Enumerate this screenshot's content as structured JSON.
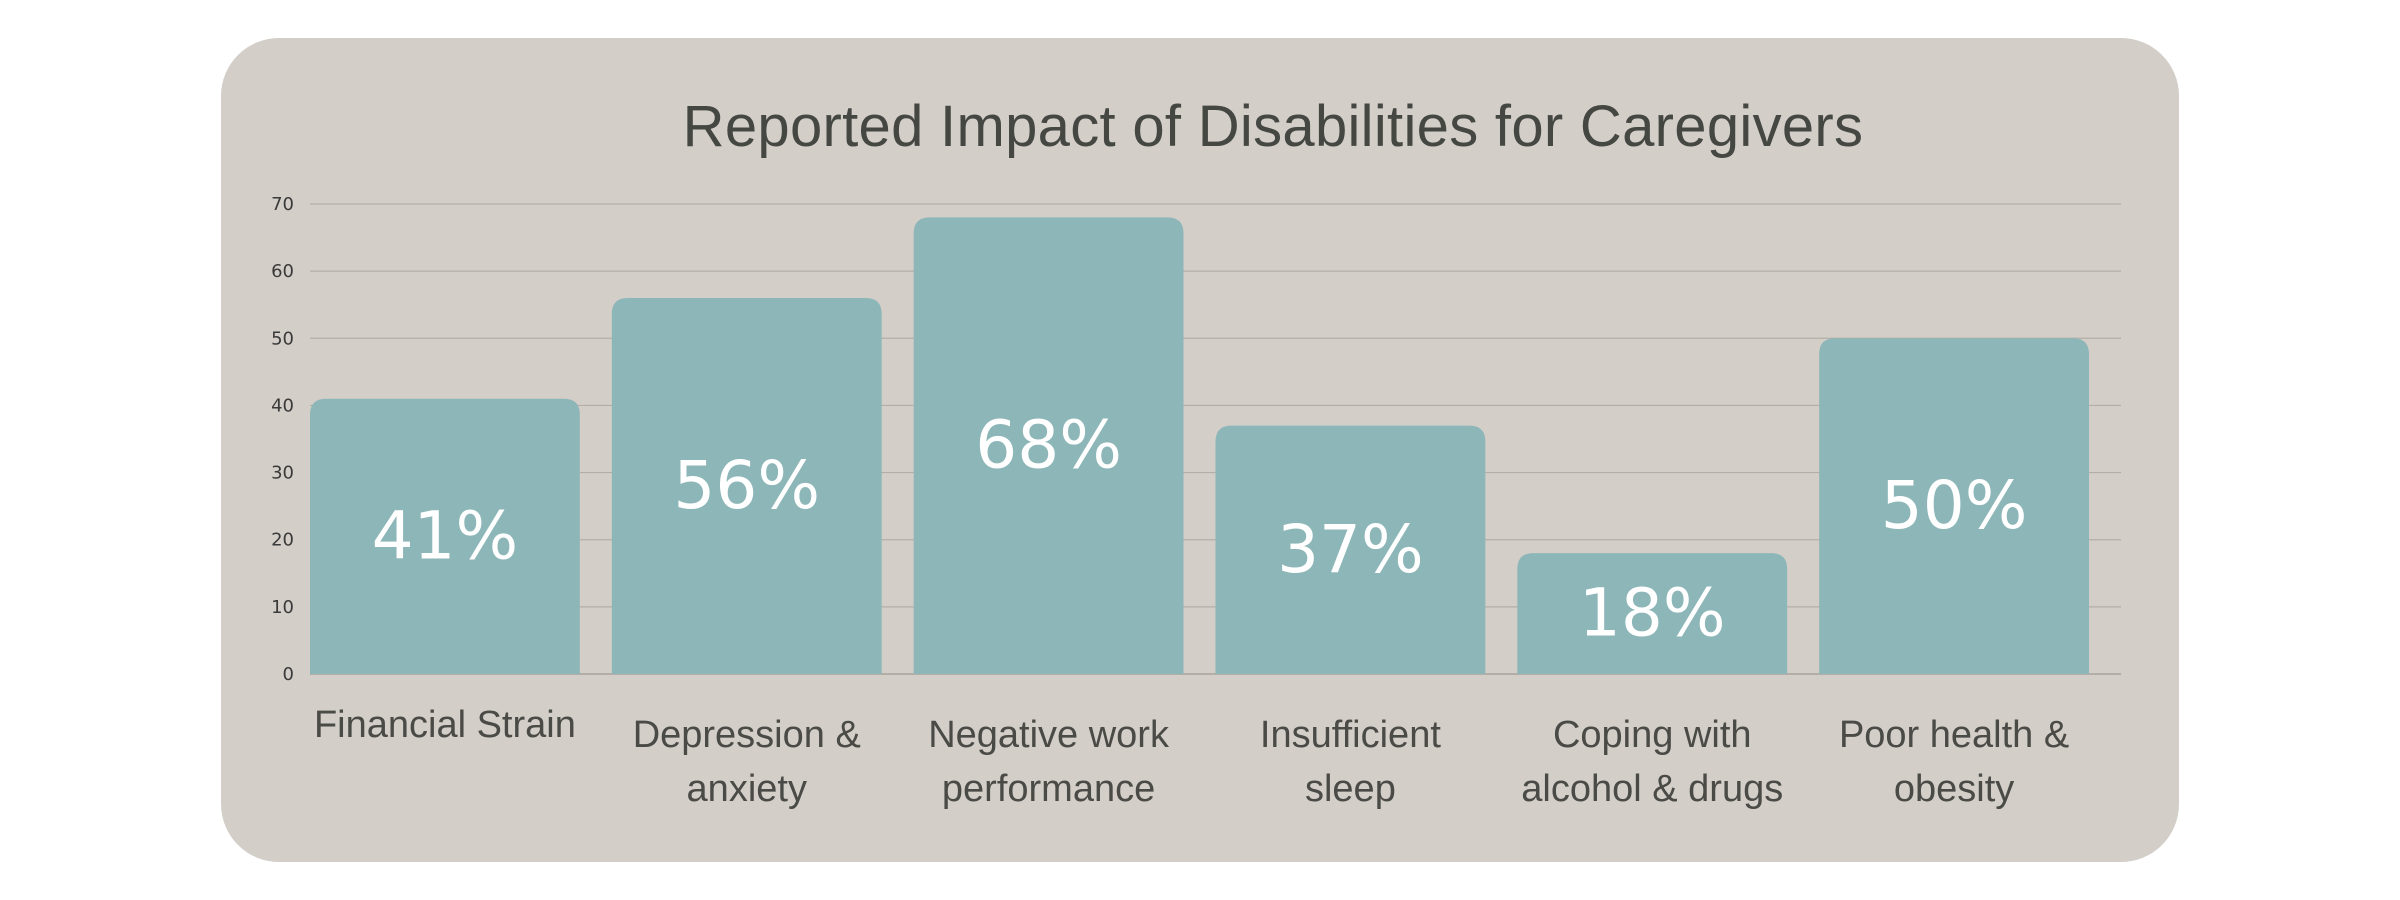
{
  "chart_data": {
    "type": "bar",
    "title": "Reported Impact of Disabilities for Caregivers",
    "categories": [
      [
        "Financial Strain"
      ],
      [
        "Depression &",
        "anxiety"
      ],
      [
        "Negative work",
        "performance"
      ],
      [
        "Insufficient",
        "sleep"
      ],
      [
        "Coping with",
        "alcohol & drugs"
      ],
      [
        "Poor health &",
        "obesity"
      ]
    ],
    "values": [
      41,
      56,
      68,
      37,
      18,
      50
    ],
    "value_labels": [
      "41%",
      "56%",
      "68%",
      "37%",
      "18%",
      "50%"
    ],
    "ylim": [
      0,
      70
    ],
    "yticks": [
      0,
      10,
      20,
      30,
      40,
      50,
      60,
      70
    ],
    "grid": true,
    "xlabel": "",
    "ylabel": ""
  },
  "colors": {
    "bar": "#8db6b8",
    "grid": "#b3aea8",
    "card": "#d3cec8",
    "title": "#454743"
  }
}
